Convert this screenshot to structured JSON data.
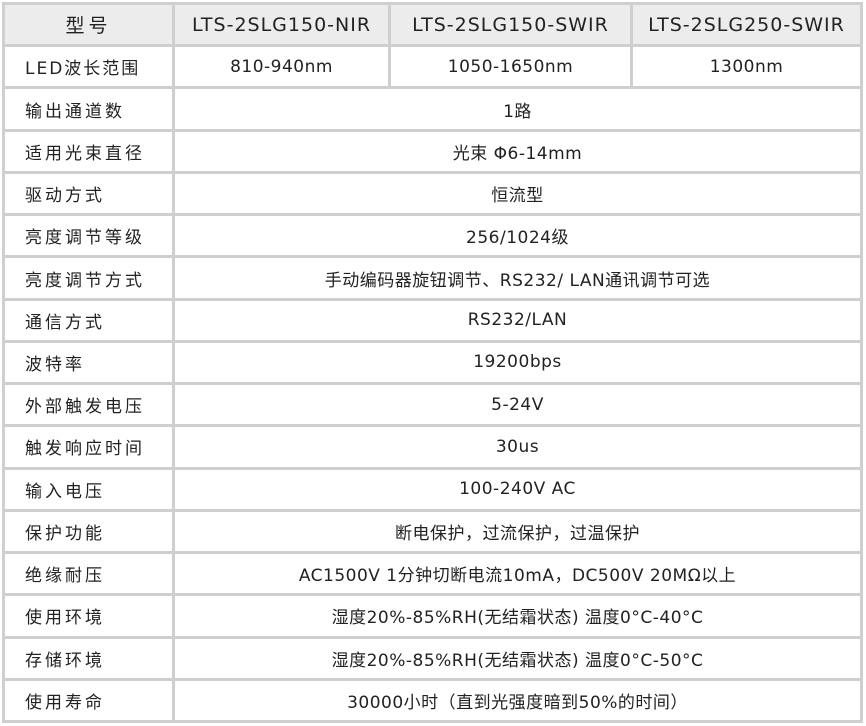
{
  "header": {
    "label": "型号",
    "models": [
      "LTS-2SLG150-NIR",
      "LTS-2SLG150-SWIR",
      "LTS-2SLG250-SWIR"
    ]
  },
  "wavelength": {
    "label": "LED波长范围",
    "values": [
      "810-940nm",
      "1050-1650nm",
      "1300nm"
    ]
  },
  "rows": [
    {
      "label": "输出通道数",
      "value": "1路"
    },
    {
      "label": "适用光束直径",
      "value": "光束 Φ6-14mm"
    },
    {
      "label": "驱动方式",
      "value": "恒流型"
    },
    {
      "label": "亮度调节等级",
      "value": "256/1024级"
    },
    {
      "label": "亮度调节方式",
      "value": "手动编码器旋钮调节、RS232/ LAN通讯调节可选"
    },
    {
      "label": "通信方式",
      "value": "RS232/LAN"
    },
    {
      "label": "波特率",
      "value": "19200bps"
    },
    {
      "label": "外部触发电压",
      "value": "5-24V"
    },
    {
      "label": "触发响应时间",
      "value": "30us"
    },
    {
      "label": "输入电压",
      "value": "100-240V AC"
    },
    {
      "label": "保护功能",
      "value": "断电保护，过流保护，过温保护"
    },
    {
      "label": "绝缘耐压",
      "value": "AC1500V 1分钟切断电流10mA，DC500V 20MΩ以上"
    },
    {
      "label": "使用环境",
      "value": "湿度20%-85%RH(无结霜状态) 温度0°C-40°C"
    },
    {
      "label": "存储环境",
      "value": "湿度20%-85%RH(无结霜状态) 温度0°C-50°C"
    },
    {
      "label": "使用寿命",
      "value": "30000小时（直到光强度暗到50%的时间）"
    }
  ]
}
